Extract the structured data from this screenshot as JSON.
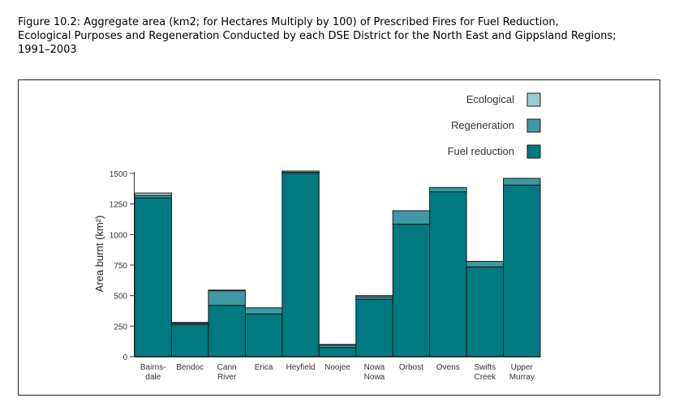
{
  "caption": {
    "line1": "Figure 10.2:  Aggregate area (km2; for Hectares Multiply by 100) of Prescribed Fires for Fuel Reduction,",
    "line2": "Ecological Purposes and Regeneration Conducted by each DSE District for the North East and Gippsland Regions;",
    "line3": "1991–2003"
  },
  "colors": {
    "fuel": "#007a80",
    "regen": "#3f98a2",
    "eco": "#9ccbcf",
    "outline": "#1a1a1a"
  },
  "chart_data": {
    "type": "bar",
    "stacked": true,
    "title": "",
    "xlabel": "",
    "ylabel": "Area burnt (km²)",
    "ylim": [
      0,
      1500
    ],
    "yticks": [
      0,
      250,
      500,
      750,
      1000,
      1250,
      1500
    ],
    "ytick_labels": [
      "0",
      "250",
      "500",
      "750",
      "1000",
      "1250",
      "1500"
    ],
    "categories": [
      [
        "Bairns-",
        "dale"
      ],
      [
        "Bendoc"
      ],
      [
        "Cann",
        "River"
      ],
      [
        "Erica"
      ],
      [
        "Heyfield"
      ],
      [
        "Noojee"
      ],
      [
        "Nowa",
        "Nowa"
      ],
      [
        "Orbost"
      ],
      [
        "Ovens"
      ],
      [
        "Swifts",
        "Creek"
      ],
      [
        "Upper",
        "Murray"
      ]
    ],
    "series": [
      {
        "name": "Fuel reduction",
        "color": "#007a80",
        "values": [
          1300,
          265,
          420,
          350,
          1500,
          75,
          470,
          1085,
          1350,
          735,
          1405
        ]
      },
      {
        "name": "Regeneration",
        "color": "#3f98a2",
        "values": [
          20,
          10,
          120,
          50,
          10,
          20,
          20,
          110,
          35,
          45,
          55
        ]
      },
      {
        "name": "Ecological",
        "color": "#9ccbcf",
        "values": [
          20,
          5,
          5,
          0,
          10,
          5,
          10,
          0,
          0,
          0,
          0
        ]
      }
    ],
    "legend": {
      "position": "top-right",
      "entries": [
        "Ecological",
        "Regeneration",
        "Fuel reduction"
      ]
    },
    "grid": false
  }
}
